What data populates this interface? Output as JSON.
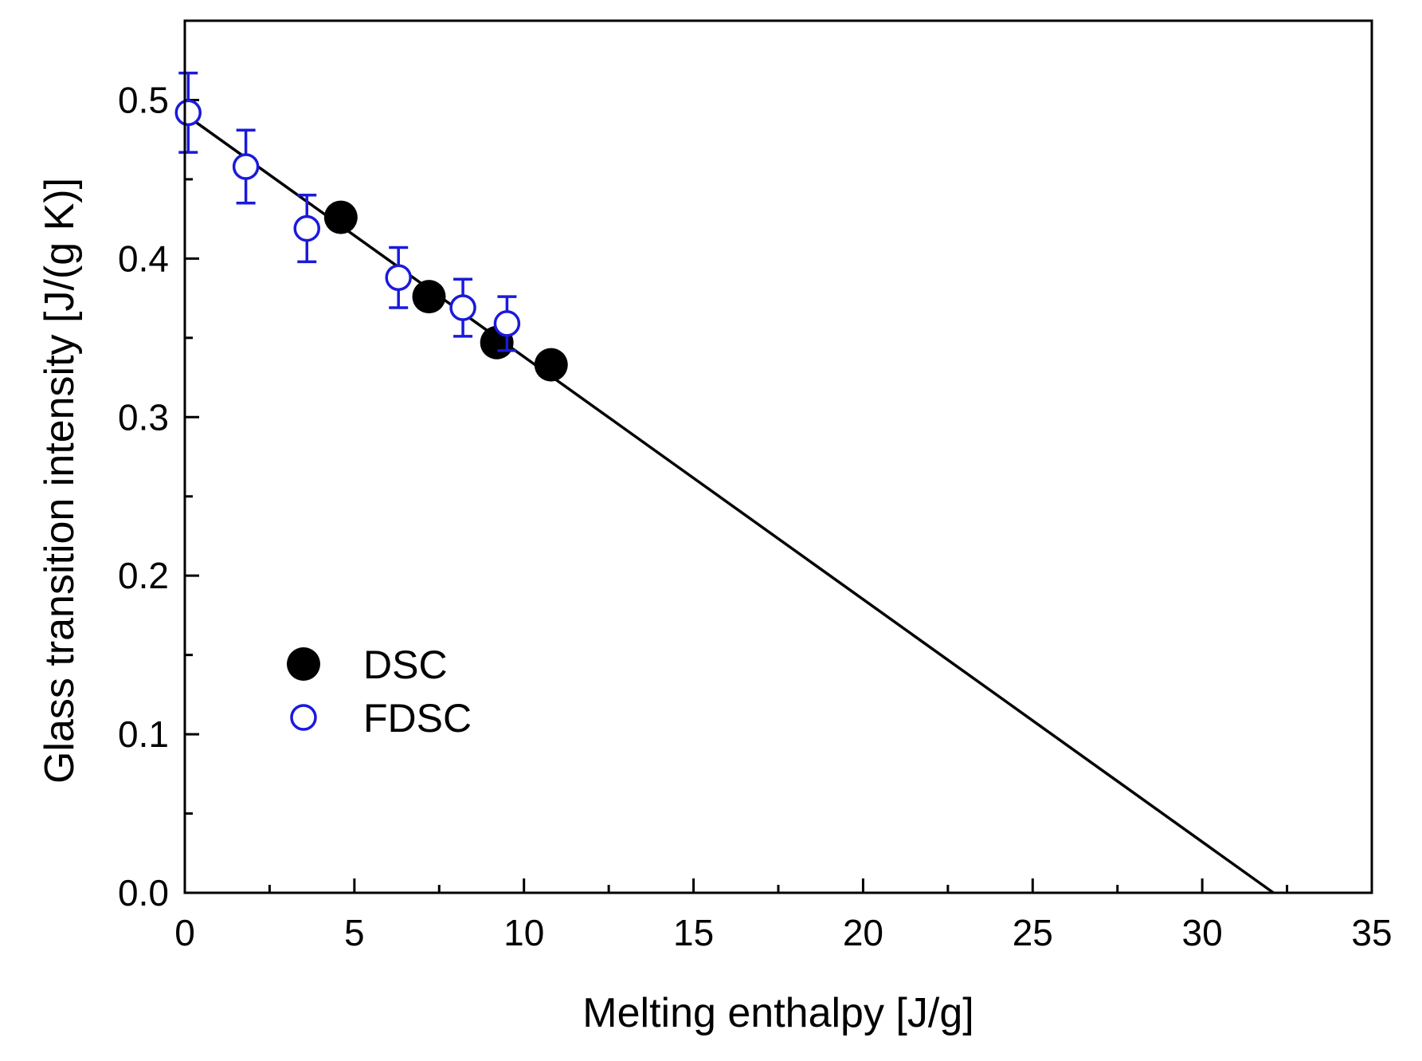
{
  "chart_data": {
    "type": "scatter",
    "xlabel": "Melting enthalpy [J/g]",
    "ylabel": "Glass transition intensity [J/(g K)]",
    "xlim": [
      0,
      35
    ],
    "ylim": [
      0,
      0.55
    ],
    "xticks": [
      0,
      5,
      10,
      15,
      20,
      25,
      30,
      35
    ],
    "xtick_labels": [
      "0",
      "5",
      "10",
      "15",
      "20",
      "25",
      "30",
      "35"
    ],
    "yticks": [
      0.0,
      0.1,
      0.2,
      0.3,
      0.4,
      0.5
    ],
    "ytick_labels": [
      "0.0",
      "0.1",
      "0.2",
      "0.3",
      "0.4",
      "0.5"
    ],
    "x_minor_step": 2.5,
    "y_minor_step": 0.05,
    "legend_position": "lower-left",
    "series": [
      {
        "name": "DSC",
        "marker": "filled-circle",
        "color": "#000000",
        "points": [
          {
            "x": 4.6,
            "y": 0.426
          },
          {
            "x": 7.2,
            "y": 0.376
          },
          {
            "x": 9.2,
            "y": 0.347
          },
          {
            "x": 10.8,
            "y": 0.333
          }
        ]
      },
      {
        "name": "FDSC",
        "marker": "open-circle",
        "color": "#1a1adc",
        "points": [
          {
            "x": 0.1,
            "y": 0.492,
            "err": 0.025
          },
          {
            "x": 1.8,
            "y": 0.458,
            "err": 0.023
          },
          {
            "x": 3.6,
            "y": 0.419,
            "err": 0.021
          },
          {
            "x": 6.3,
            "y": 0.388,
            "err": 0.019
          },
          {
            "x": 8.2,
            "y": 0.369,
            "err": 0.018
          },
          {
            "x": 9.5,
            "y": 0.359,
            "err": 0.017
          }
        ]
      }
    ],
    "fit_line": {
      "color": "#000000",
      "points": [
        {
          "x": 0,
          "y": 0.491
        },
        {
          "x": 32.1,
          "y": 0.0
        }
      ]
    }
  }
}
